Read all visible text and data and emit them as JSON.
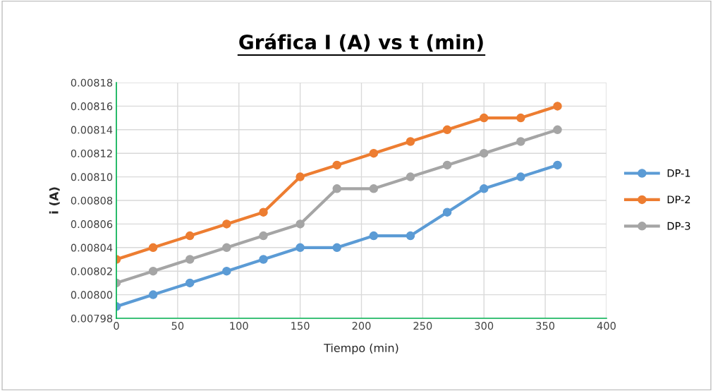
{
  "chart_data": {
    "type": "line",
    "title": "Gráfica I (A) vs t (min)",
    "xlabel": "Tiempo (min)",
    "ylabel": "i (A)",
    "x": [
      0,
      30,
      60,
      90,
      120,
      150,
      180,
      210,
      240,
      270,
      300,
      330,
      360
    ],
    "series": [
      {
        "name": "DP-1",
        "color": "#5b9bd5",
        "values": [
          0.00799,
          0.008,
          0.00801,
          0.00802,
          0.00803,
          0.00804,
          0.00804,
          0.00805,
          0.00805,
          0.00807,
          0.00809,
          0.0081,
          0.00811
        ]
      },
      {
        "name": "DP-2",
        "color": "#ed7d31",
        "values": [
          0.00803,
          0.00804,
          0.00805,
          0.00806,
          0.00807,
          0.0081,
          0.00811,
          0.00812,
          0.00813,
          0.00814,
          0.00815,
          0.00815,
          0.00816
        ]
      },
      {
        "name": "DP-3",
        "color": "#a5a5a5",
        "values": [
          0.00801,
          0.00802,
          0.00803,
          0.00804,
          0.00805,
          0.00806,
          0.00809,
          0.00809,
          0.0081,
          0.00811,
          0.00812,
          0.00813,
          0.00814
        ]
      }
    ],
    "xlim": [
      0,
      400
    ],
    "xticks": [
      0,
      50,
      100,
      150,
      200,
      250,
      300,
      350,
      400
    ],
    "ylim": [
      0.00798,
      0.00818
    ],
    "yticks": [
      {
        "value": 0.00798,
        "label": "0.00798"
      },
      {
        "value": 0.008,
        "label": "0.00800"
      },
      {
        "value": 0.00802,
        "label": "0.00802"
      },
      {
        "value": 0.00804,
        "label": "0.00804"
      },
      {
        "value": 0.00806,
        "label": "0.00806"
      },
      {
        "value": 0.00808,
        "label": "0.00808"
      },
      {
        "value": 0.0081,
        "label": "0.00810"
      },
      {
        "value": 0.00812,
        "label": "0.00812"
      },
      {
        "value": 0.00814,
        "label": "0.00814"
      },
      {
        "value": 0.00816,
        "label": "0.00816"
      },
      {
        "value": 0.00818,
        "label": "0.00818"
      }
    ],
    "grid": true,
    "legend": "right",
    "marker": "circle",
    "line_style": "solid"
  }
}
